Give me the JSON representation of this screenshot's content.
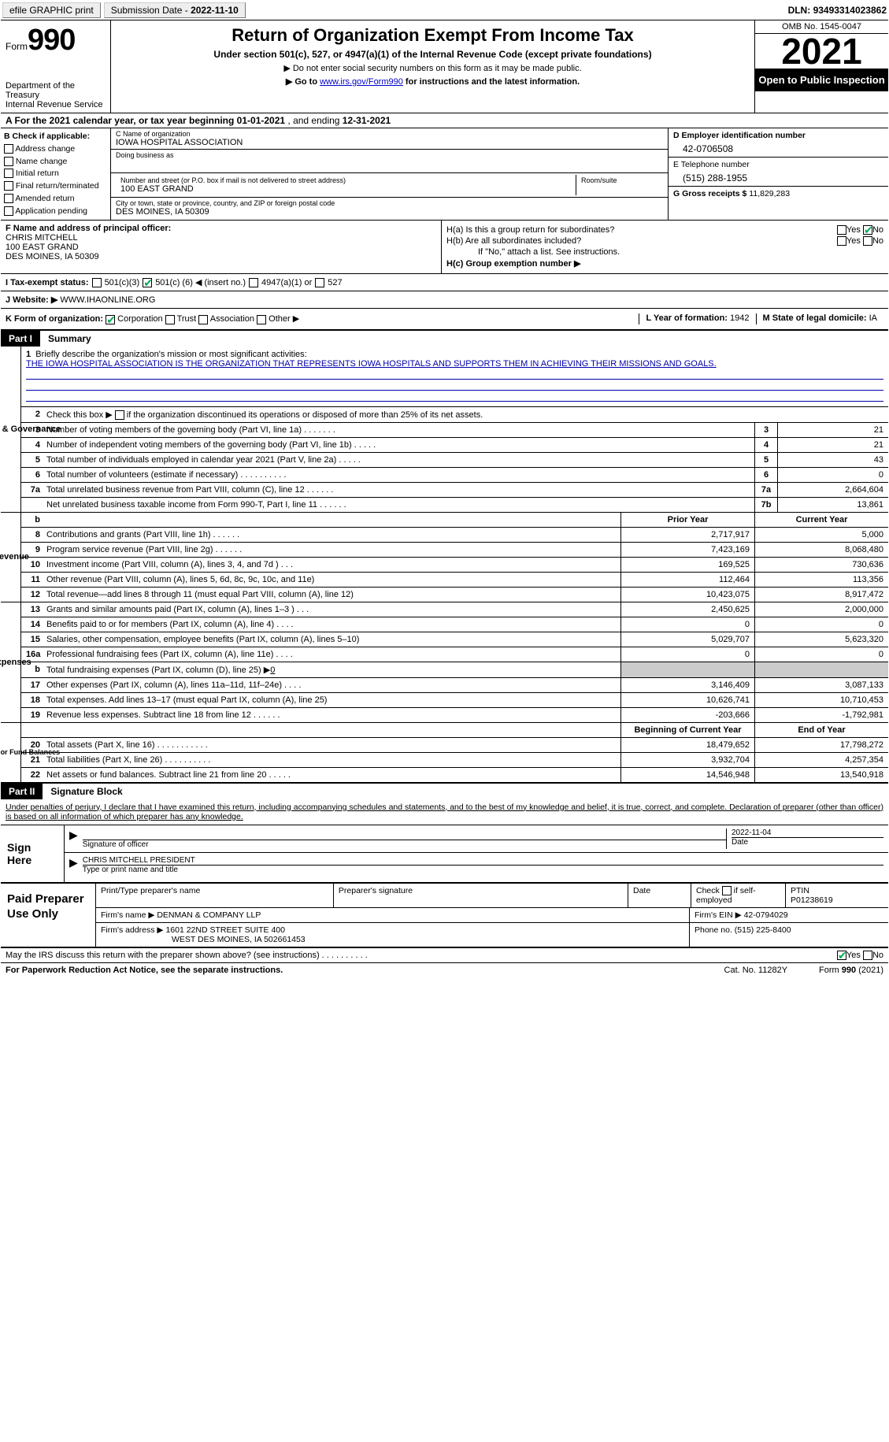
{
  "topbar": {
    "btn1": "efile GRAPHIC print",
    "btn2_prefix": "Submission Date - ",
    "btn2_date": "2022-11-10",
    "dln_prefix": "DLN: ",
    "dln": "93493314023862"
  },
  "header": {
    "form_word": "Form",
    "form_num": "990",
    "dept1": "Department of the Treasury",
    "dept2": "Internal Revenue Service",
    "title": "Return of Organization Exempt From Income Tax",
    "sub1": "Under section 501(c), 527, or 4947(a)(1) of the Internal Revenue Code (except private foundations)",
    "sub2a": "▶ Do not enter social security numbers on this form as it may be made public.",
    "sub2b_prefix": "▶ Go to ",
    "sub2b_link": "www.irs.gov/Form990",
    "sub2b_suffix": " for instructions and the latest information.",
    "omb": "OMB No. 1545-0047",
    "year": "2021",
    "inspect": "Open to Public Inspection"
  },
  "cal": {
    "a_prefix": "A For the 2021 calendar year, or tax year beginning ",
    "begin": "01-01-2021",
    "mid": "  , and ending ",
    "end": "12-31-2021"
  },
  "colB": {
    "title": "B Check if applicable:",
    "opts": [
      "Address change",
      "Name change",
      "Initial return",
      "Final return/terminated",
      "Amended return",
      "Application pending"
    ]
  },
  "colC": {
    "name_lbl": "C Name of organization",
    "name": "IOWA HOSPITAL ASSOCIATION",
    "dba_lbl": "Doing business as",
    "addr_lbl": "Number and street (or P.O. box if mail is not delivered to street address)",
    "room_lbl": "Room/suite",
    "addr": "100 EAST GRAND",
    "city_lbl": "City or town, state or province, country, and ZIP or foreign postal code",
    "city": "DES MOINES, IA  50309"
  },
  "colD": {
    "ein_lbl": "D Employer identification number",
    "ein": "42-0706508",
    "tel_lbl": "E Telephone number",
    "tel": "(515) 288-1955",
    "gross_lbl": "G Gross receipts $ ",
    "gross": "11,829,283"
  },
  "blockF": {
    "f_lbl": "F Name and address of principal officer:",
    "f_name": "CHRIS MITCHELL",
    "f_addr1": "100 EAST GRAND",
    "f_addr2": "DES MOINES, IA  50309",
    "ha": "H(a)  Is this a group return for subordinates?",
    "hb": "H(b)  Are all subordinates included?",
    "hb_note": "If \"No,\" attach a list. See instructions.",
    "hc": "H(c)  Group exemption number ▶",
    "yes": "Yes",
    "no": "No"
  },
  "tax": {
    "lbl": "I   Tax-exempt status:",
    "opt1": "501(c)(3)",
    "opt2a": "501(c) ( ",
    "opt2b": "6",
    "opt2c": " ) ◀ (insert no.)",
    "opt3": "4947(a)(1) or",
    "opt4": "527"
  },
  "web": {
    "lbl": "J   Website: ▶  ",
    "val": "WWW.IHAONLINE.ORG"
  },
  "orgform": {
    "k": "K Form of organization:",
    "opts": [
      "Corporation",
      "Trust",
      "Association",
      "Other ▶"
    ],
    "l_lbl": "L Year of formation: ",
    "l_val": "1942",
    "m_lbl": "M State of legal domicile: ",
    "m_val": "IA"
  },
  "parts": {
    "p1": "Part I",
    "p1t": "Summary",
    "p2": "Part II",
    "p2t": "Signature Block"
  },
  "summary": {
    "side1": "Activities & Governance",
    "side2": "Revenue",
    "side3": "Expenses",
    "side4": "Net Assets or Fund Balances",
    "l1a": "Briefly describe the organization's mission or most significant activities:",
    "l1b": "THE IOWA HOSPITAL ASSOCIATION IS THE ORGANIZATION THAT REPRESENTS IOWA HOSPITALS AND SUPPORTS THEM IN ACHIEVING THEIR MISSIONS AND GOALS.",
    "l2a": "Check this box ▶ ",
    "l2b": " if the organization discontinued its operations or disposed of more than 25% of its net assets.",
    "rows_ag": [
      {
        "n": "3",
        "t": "Number of voting members of the governing body (Part VI, line 1a)  .    .    .    .    .    .    .",
        "c": "3",
        "v": "21"
      },
      {
        "n": "4",
        "t": "Number of independent voting members of the governing body (Part VI, line 1b)  .    .    .    .    .",
        "c": "4",
        "v": "21"
      },
      {
        "n": "5",
        "t": "Total number of individuals employed in calendar year 2021 (Part V, line 2a)  .    .    .    .    .",
        "c": "5",
        "v": "43"
      },
      {
        "n": "6",
        "t": "Total number of volunteers (estimate if necessary)    .    .    .    .    .    .    .    .    .    .",
        "c": "6",
        "v": "0"
      },
      {
        "n": "7a",
        "t": "Total unrelated business revenue from Part VIII, column (C), line 12    .    .    .    .    .    .",
        "c": "7a",
        "v": "2,664,604"
      },
      {
        "n": "",
        "t": "Net unrelated business taxable income from Form 990-T, Part I, line 11  .    .    .    .    .    .",
        "c": "7b",
        "v": "13,861"
      }
    ],
    "hdr_prior": "Prior Year",
    "hdr_curr": "Current Year",
    "rows_rev": [
      {
        "n": "8",
        "t": "Contributions and grants (Part VIII, line 1h)  .    .    .    .    .    .",
        "p": "2,717,917",
        "c": "5,000"
      },
      {
        "n": "9",
        "t": "Program service revenue (Part VIII, line 2g)  .    .    .    .    .    .",
        "p": "7,423,169",
        "c": "8,068,480"
      },
      {
        "n": "10",
        "t": "Investment income (Part VIII, column (A), lines 3, 4, and 7d )  .    .    .",
        "p": "169,525",
        "c": "730,636"
      },
      {
        "n": "11",
        "t": "Other revenue (Part VIII, column (A), lines 5, 6d, 8c, 9c, 10c, and 11e)",
        "p": "112,464",
        "c": "113,356"
      },
      {
        "n": "12",
        "t": "Total revenue—add lines 8 through 11 (must equal Part VIII, column (A), line 12)",
        "p": "10,423,075",
        "c": "8,917,472"
      }
    ],
    "rows_exp": [
      {
        "n": "13",
        "t": "Grants and similar amounts paid (Part IX, column (A), lines 1–3 )  .    .    .",
        "p": "2,450,625",
        "c": "2,000,000"
      },
      {
        "n": "14",
        "t": "Benefits paid to or for members (Part IX, column (A), line 4)  .    .    .    .",
        "p": "0",
        "c": "0"
      },
      {
        "n": "15",
        "t": "Salaries, other compensation, employee benefits (Part IX, column (A), lines 5–10)",
        "p": "5,029,707",
        "c": "5,623,320"
      },
      {
        "n": "16a",
        "t": "Professional fundraising fees (Part IX, column (A), line 11e)  .    .    .    .",
        "p": "0",
        "c": "0"
      },
      {
        "n": "b",
        "t": "Total fundraising expenses (Part IX, column (D), line 25) ▶",
        "b": "0",
        "p": "grey",
        "c": "grey"
      },
      {
        "n": "17",
        "t": "Other expenses (Part IX, column (A), lines 11a–11d, 11f–24e)  .    .    .    .",
        "p": "3,146,409",
        "c": "3,087,133"
      },
      {
        "n": "18",
        "t": "Total expenses. Add lines 13–17 (must equal Part IX, column (A), line 25)",
        "p": "10,626,741",
        "c": "10,710,453"
      },
      {
        "n": "19",
        "t": "Revenue less expenses. Subtract line 18 from line 12  .    .    .    .    .    .",
        "p": "-203,666",
        "c": "-1,792,981"
      }
    ],
    "hdr_beg": "Beginning of Current Year",
    "hdr_end": "End of Year",
    "rows_net": [
      {
        "n": "20",
        "t": "Total assets (Part X, line 16)  .    .    .    .    .    .    .    .    .    .    .",
        "p": "18,479,652",
        "c": "17,798,272"
      },
      {
        "n": "21",
        "t": "Total liabilities (Part X, line 26)  .    .    .    .    .    .    .    .    .    .",
        "p": "3,932,704",
        "c": "4,257,354"
      },
      {
        "n": "22",
        "t": "Net assets or fund balances. Subtract line 21 from line 20  .    .    .    .    .",
        "p": "14,546,948",
        "c": "13,540,918"
      }
    ]
  },
  "sig": {
    "decl": "Under penalties of perjury, I declare that I have examined this return, including accompanying schedules and statements, and to the best of my knowledge and belief, it is true, correct, and complete. Declaration of preparer (other than officer) is based on all information of which preparer has any knowledge.",
    "sign_here": "Sign Here",
    "sig_officer": "Signature of officer",
    "sig_date": "2022-11-04",
    "date_lbl": "Date",
    "name_title": "CHRIS MITCHELL  PRESIDENT",
    "name_title_lbl": "Type or print name and title"
  },
  "paid": {
    "lbl": "Paid Preparer Use Only",
    "h1": "Print/Type preparer's name",
    "h2": "Preparer's signature",
    "h3": "Date",
    "h4a": "Check ",
    "h4b": " if self-employed",
    "h5_lbl": "PTIN",
    "h5": "P01238619",
    "firm_name_lbl": "Firm's name    ▶ ",
    "firm_name": "DENMAN & COMPANY LLP",
    "firm_ein_lbl": "Firm's EIN ▶ ",
    "firm_ein": "42-0794029",
    "firm_addr_lbl": "Firm's address ▶ ",
    "firm_addr1": "1601 22ND STREET SUITE 400",
    "firm_addr2": "WEST DES MOINES, IA  502661453",
    "phone_lbl": "Phone no. ",
    "phone": "(515) 225-8400"
  },
  "footer": {
    "discuss": "May the IRS discuss this return with the preparer shown above? (see instructions)  .    .    .    .    .    .    .    .    .    .",
    "yes": "Yes",
    "no": "No",
    "pra": "For Paperwork Reduction Act Notice, see the separate instructions.",
    "cat": "Cat. No. 11282Y",
    "form": "Form 990 (2021)"
  }
}
